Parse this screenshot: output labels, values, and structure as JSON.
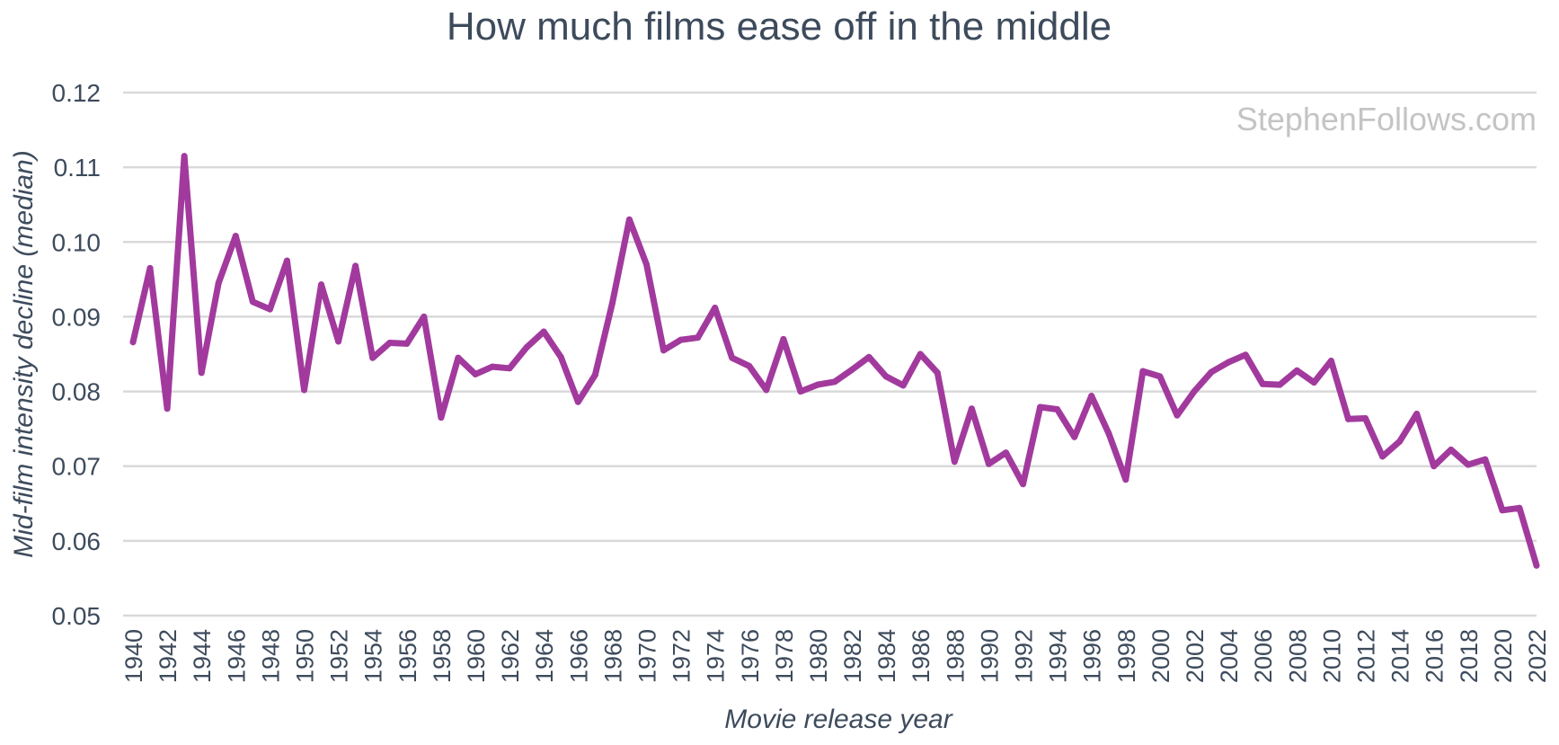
{
  "chart_data": {
    "type": "line",
    "title": "How much films ease off in the middle",
    "xlabel": "Movie release year",
    "ylabel": "Mid-film intensity decline (median)",
    "watermark": "StephenFollows.com",
    "ylim": [
      0.05,
      0.12
    ],
    "yticks": [
      "0.05",
      "0.06",
      "0.07",
      "0.08",
      "0.09",
      "0.10",
      "0.11",
      "0.12"
    ],
    "xlim": [
      1940,
      2022
    ],
    "xticks": [
      "1940",
      "1942",
      "1944",
      "1946",
      "1948",
      "1950",
      "1952",
      "1954",
      "1956",
      "1958",
      "1960",
      "1962",
      "1964",
      "1966",
      "1968",
      "1970",
      "1972",
      "1974",
      "1976",
      "1978",
      "1980",
      "1982",
      "1984",
      "1986",
      "1988",
      "1990",
      "1992",
      "1994",
      "1996",
      "1998",
      "2000",
      "2002",
      "2004",
      "2006",
      "2008",
      "2010",
      "2012",
      "2014",
      "2016",
      "2018",
      "2020",
      "2022"
    ],
    "grid": true,
    "series": [
      {
        "name": "Mid-film intensity decline (median)",
        "color": "#a23a9e",
        "x": [
          1940,
          1941,
          1942,
          1943,
          1944,
          1945,
          1946,
          1947,
          1948,
          1949,
          1950,
          1951,
          1952,
          1953,
          1954,
          1955,
          1956,
          1957,
          1958,
          1959,
          1960,
          1961,
          1962,
          1963,
          1964,
          1965,
          1966,
          1967,
          1968,
          1969,
          1970,
          1971,
          1972,
          1973,
          1974,
          1975,
          1976,
          1977,
          1978,
          1979,
          1980,
          1981,
          1982,
          1983,
          1984,
          1985,
          1986,
          1987,
          1988,
          1989,
          1990,
          1991,
          1992,
          1993,
          1994,
          1995,
          1996,
          1997,
          1998,
          1999,
          2000,
          2001,
          2002,
          2003,
          2004,
          2005,
          2006,
          2007,
          2008,
          2009,
          2010,
          2011,
          2012,
          2013,
          2014,
          2015,
          2016,
          2017,
          2018,
          2019,
          2020,
          2021,
          2022
        ],
        "values": [
          0.0866,
          0.0965,
          0.0777,
          0.1115,
          0.0825,
          0.0945,
          0.1008,
          0.092,
          0.091,
          0.0975,
          0.0802,
          0.0943,
          0.0867,
          0.0968,
          0.0845,
          0.0865,
          0.0864,
          0.09,
          0.0765,
          0.0845,
          0.0823,
          0.0833,
          0.0831,
          0.0859,
          0.088,
          0.0846,
          0.0786,
          0.0822,
          0.0918,
          0.103,
          0.097,
          0.0855,
          0.0869,
          0.0872,
          0.0912,
          0.0845,
          0.0834,
          0.0802,
          0.087,
          0.08,
          0.0809,
          0.0813,
          0.0829,
          0.0846,
          0.082,
          0.0808,
          0.085,
          0.0825,
          0.0706,
          0.0777,
          0.0703,
          0.0718,
          0.0676,
          0.0779,
          0.0776,
          0.0739,
          0.0794,
          0.0744,
          0.0682,
          0.0827,
          0.082,
          0.0768,
          0.08,
          0.0826,
          0.0839,
          0.0849,
          0.081,
          0.0809,
          0.0828,
          0.0812,
          0.0841,
          0.0763,
          0.0764,
          0.0713,
          0.0733,
          0.077,
          0.07,
          0.0722,
          0.0702,
          0.0709,
          0.0641,
          0.0644,
          0.0567
        ]
      }
    ]
  }
}
